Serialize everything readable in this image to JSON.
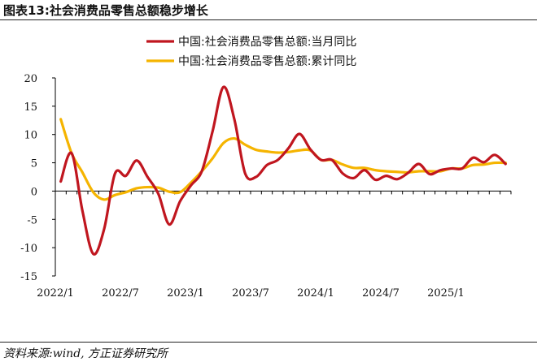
{
  "figure": {
    "title": "图表13:社会消费品零售总额稳步增长",
    "source": "资料来源:wind, 方正证券研究所"
  },
  "chart_data": {
    "type": "line",
    "title": "图表13:社会消费品零售总额稳步增长",
    "xlabel": "",
    "ylabel": "",
    "ylim": [
      -15,
      20
    ],
    "yticks": [
      -15,
      -10,
      -5,
      0,
      5,
      10,
      15,
      20
    ],
    "xticks": [
      "2022/1",
      "2022/7",
      "2023/1",
      "2023/7",
      "2024/1",
      "2024/7",
      "2025/1"
    ],
    "x": [
      "2022/1",
      "2022/2",
      "2022/3",
      "2022/4",
      "2022/5",
      "2022/6",
      "2022/7",
      "2022/8",
      "2022/9",
      "2022/10",
      "2022/11",
      "2022/12",
      "2023/1",
      "2023/2",
      "2023/3",
      "2023/4",
      "2023/5",
      "2023/6",
      "2023/7",
      "2023/8",
      "2023/9",
      "2023/10",
      "2023/11",
      "2023/12",
      "2024/1",
      "2024/2",
      "2024/3",
      "2024/4",
      "2024/5",
      "2024/6",
      "2024/7",
      "2024/8",
      "2024/9",
      "2024/10",
      "2024/11",
      "2024/12",
      "2025/1",
      "2025/2",
      "2025/3",
      "2025/4",
      "2025/5",
      "2025/6"
    ],
    "grid": false,
    "legend_position": "top",
    "series": [
      {
        "name": "中国:社会消费品零售总额:当月同比",
        "color": "#C0161F",
        "values": [
          1.7,
          6.7,
          -3.5,
          -11.1,
          -6.7,
          3.1,
          2.7,
          5.4,
          2.5,
          -0.5,
          -5.9,
          -1.8,
          1.0,
          3.5,
          10.6,
          18.4,
          12.7,
          3.1,
          2.5,
          4.6,
          5.5,
          7.6,
          10.1,
          7.4,
          5.5,
          5.5,
          3.1,
          2.3,
          3.7,
          2.0,
          2.7,
          2.1,
          3.2,
          4.8,
          3.0,
          3.7,
          4.0,
          4.0,
          5.9,
          5.1,
          6.4,
          4.8
        ]
      },
      {
        "name": "中国:社会消费品零售总额:累计同比",
        "color": "#F5B400",
        "values": [
          12.7,
          6.7,
          3.3,
          -0.2,
          -1.5,
          -0.7,
          -0.2,
          0.5,
          0.7,
          0.6,
          -0.1,
          -0.2,
          1.5,
          3.5,
          5.8,
          8.5,
          9.3,
          8.2,
          7.3,
          7.0,
          6.8,
          6.9,
          7.2,
          7.2,
          5.5,
          5.5,
          4.7,
          4.1,
          4.1,
          3.7,
          3.5,
          3.4,
          3.3,
          3.5,
          3.5,
          3.5,
          4.0,
          4.0,
          4.6,
          4.7,
          5.0,
          5.0
        ]
      }
    ]
  }
}
